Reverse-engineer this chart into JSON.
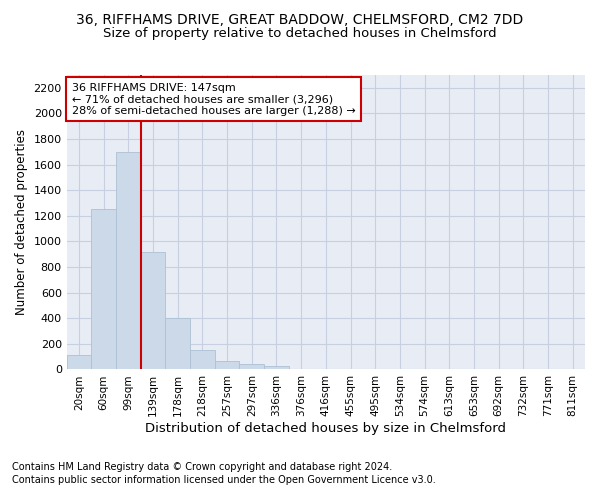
{
  "title1": "36, RIFFHAMS DRIVE, GREAT BADDOW, CHELMSFORD, CM2 7DD",
  "title2": "Size of property relative to detached houses in Chelmsford",
  "xlabel": "Distribution of detached houses by size in Chelmsford",
  "ylabel": "Number of detached properties",
  "footnote1": "Contains HM Land Registry data © Crown copyright and database right 2024.",
  "footnote2": "Contains public sector information licensed under the Open Government Licence v3.0.",
  "bar_labels": [
    "20sqm",
    "60sqm",
    "99sqm",
    "139sqm",
    "178sqm",
    "218sqm",
    "257sqm",
    "297sqm",
    "336sqm",
    "376sqm",
    "416sqm",
    "455sqm",
    "495sqm",
    "534sqm",
    "574sqm",
    "613sqm",
    "653sqm",
    "692sqm",
    "732sqm",
    "771sqm",
    "811sqm"
  ],
  "bar_values": [
    110,
    1250,
    1700,
    920,
    400,
    155,
    65,
    40,
    25,
    0,
    0,
    0,
    0,
    0,
    0,
    0,
    0,
    0,
    0,
    0,
    0
  ],
  "bar_color": "#ccd9e8",
  "bar_edgecolor": "#adc0d4",
  "vline_x_index": 3,
  "vline_color": "#cc0000",
  "ylim_max": 2300,
  "yticks": [
    0,
    200,
    400,
    600,
    800,
    1000,
    1200,
    1400,
    1600,
    1800,
    2000,
    2200
  ],
  "annotation_line1": "36 RIFFHAMS DRIVE: 147sqm",
  "annotation_line2": "← 71% of detached houses are smaller (3,296)",
  "annotation_line3": "28% of semi-detached houses are larger (1,288) →",
  "annotation_box_facecolor": "white",
  "annotation_box_edgecolor": "#cc0000",
  "grid_color": "#c8cfe0",
  "bg_color": "#e8ecf5",
  "title1_fontsize": 10,
  "title2_fontsize": 9.5,
  "xlabel_fontsize": 9.5,
  "ylabel_fontsize": 8.5,
  "footnote_fontsize": 7,
  "annotation_fontsize": 8,
  "tick_fontsize": 7.5
}
